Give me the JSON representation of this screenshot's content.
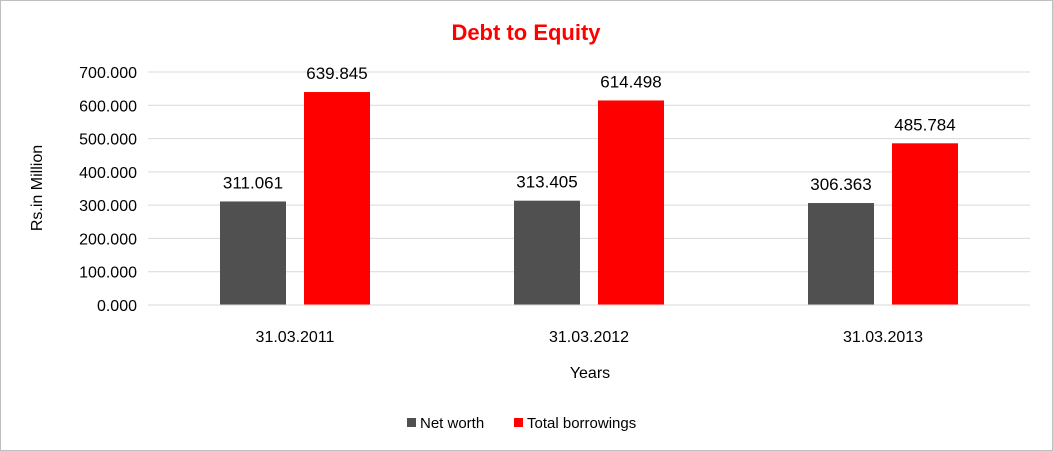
{
  "chart_data": {
    "type": "bar",
    "title": "Debt to Equity",
    "xlabel": "Years",
    "ylabel": "Rs.in Million",
    "categories": [
      "31.03.2011",
      "31.03.2012",
      "31.03.2013"
    ],
    "series": [
      {
        "name": "Net worth",
        "values": [
          311.061,
          313.405,
          306.363
        ],
        "color": "#505050"
      },
      {
        "name": "Total borrowings",
        "values": [
          639.845,
          614.498,
          485.784
        ],
        "color": "#ff0000"
      }
    ],
    "ylim": [
      0,
      700
    ],
    "yticks": [
      "0.000",
      "100.000",
      "200.000",
      "300.000",
      "400.000",
      "500.000",
      "600.000",
      "700.000"
    ],
    "data_labels": [
      [
        "311.061",
        "313.405",
        "306.363"
      ],
      [
        "639.845",
        "614.498",
        "485.784"
      ]
    ],
    "grid": true,
    "legend": "bottom-center",
    "title_color": "#ff0000"
  }
}
